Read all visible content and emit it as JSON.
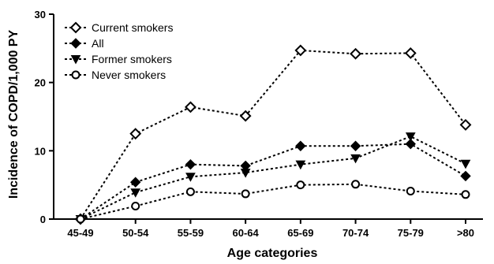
{
  "chart_data": {
    "type": "line",
    "title": "",
    "xlabel": "Age categories",
    "ylabel": "Incidence of COPD/1,000 PY",
    "ylim": [
      0,
      30
    ],
    "yticks": [
      0,
      10,
      20,
      30
    ],
    "categories": [
      "45-49",
      "50-54",
      "55-59",
      "60-64",
      "65-69",
      "70-74",
      "75-79",
      ">80"
    ],
    "grid": false,
    "legend_position": "top-left",
    "series": [
      {
        "name": "Current smokers",
        "marker": "diamond-open",
        "values": [
          0,
          12.5,
          16.4,
          15.1,
          24.7,
          24.2,
          24.3,
          13.8
        ]
      },
      {
        "name": "All",
        "marker": "diamond-filled",
        "values": [
          0,
          5.4,
          8.0,
          7.8,
          10.7,
          10.7,
          11.0,
          6.3
        ]
      },
      {
        "name": "Former smokers",
        "marker": "triangle-down-filled",
        "values": [
          0,
          3.9,
          6.2,
          6.8,
          8.0,
          8.9,
          12.1,
          8.1
        ]
      },
      {
        "name": "Never smokers",
        "marker": "circle-open",
        "values": [
          0,
          1.9,
          4.0,
          3.7,
          5.0,
          5.1,
          4.1,
          3.6
        ]
      }
    ]
  }
}
